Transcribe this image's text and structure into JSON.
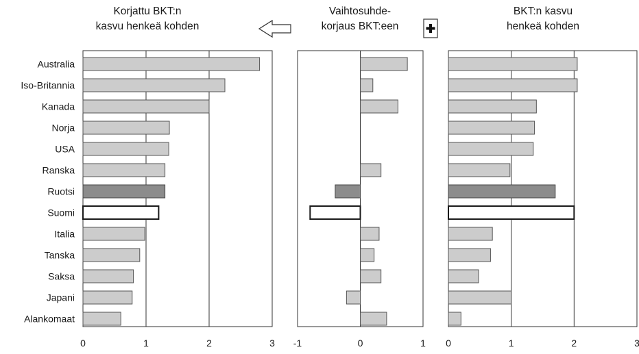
{
  "chart_data": [
    {
      "type": "bar",
      "orientation": "horizontal",
      "title": "Korjattu BKT:n kasvu henkeä kohden",
      "title_lines": [
        "Korjattu BKT:n",
        "kasvu henkeä kohden"
      ],
      "categories": [
        "Australia",
        "Iso-Britannia",
        "Kanada",
        "Norja",
        "USA",
        "Ranska",
        "Ruotsi",
        "Suomi",
        "Italia",
        "Tanska",
        "Saksa",
        "Japani",
        "Alankomaat"
      ],
      "values": [
        2.8,
        2.25,
        2.0,
        1.37,
        1.36,
        1.3,
        1.3,
        1.2,
        0.98,
        0.9,
        0.8,
        0.78,
        0.6
      ],
      "xlim": [
        0,
        3
      ],
      "ticks": [
        0,
        1,
        2,
        3
      ],
      "grid": "vertical"
    },
    {
      "type": "bar",
      "orientation": "horizontal",
      "title": "Vaihtosuhde-korjaus BKT:een",
      "title_lines": [
        "Vaihtosuhde-",
        "korjaus BKT:een"
      ],
      "categories": [
        "Australia",
        "Iso-Britannia",
        "Kanada",
        "Norja",
        "USA",
        "Ranska",
        "Ruotsi",
        "Suomi",
        "Italia",
        "Tanska",
        "Saksa",
        "Japani",
        "Alankomaat"
      ],
      "values": [
        0.75,
        0.2,
        0.6,
        0,
        0,
        0.33,
        -0.4,
        -0.8,
        0.3,
        0.22,
        0.33,
        -0.22,
        0.42
      ],
      "xlim": [
        -1,
        1
      ],
      "ticks": [
        -1,
        0,
        1
      ],
      "grid": "zero-line"
    },
    {
      "type": "bar",
      "orientation": "horizontal",
      "title": "BKT:n kasvu henkeä kohden",
      "title_lines": [
        "BKT:n kasvu",
        "henkeä kohden"
      ],
      "categories": [
        "Australia",
        "Iso-Britannia",
        "Kanada",
        "Norja",
        "USA",
        "Ranska",
        "Ruotsi",
        "Suomi",
        "Italia",
        "Tanska",
        "Saksa",
        "Japani",
        "Alankomaat"
      ],
      "values": [
        2.05,
        2.05,
        1.4,
        1.37,
        1.35,
        0.98,
        1.7,
        2.0,
        0.7,
        0.67,
        0.48,
        1.0,
        0.2
      ],
      "xlim": [
        0,
        3
      ],
      "ticks": [
        0,
        1,
        2,
        3
      ],
      "grid": "vertical"
    }
  ],
  "highlight": {
    "Ruotsi": "dark",
    "Suomi": "outline"
  },
  "colors": {
    "bar": "#cccccc",
    "bar_dark": "#8c8c8c",
    "outline": "#1a1a1a",
    "axis": "#333333",
    "background": "#ffffff"
  },
  "symbols": {
    "arrow": "left-arrow-icon",
    "plus": "plus-icon"
  }
}
